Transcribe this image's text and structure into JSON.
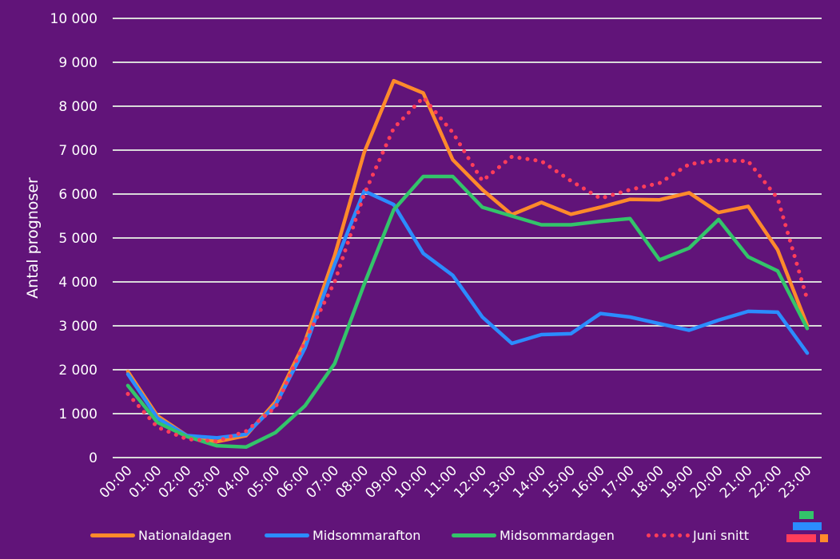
{
  "chart_data": {
    "type": "line",
    "title": "",
    "xlabel": "",
    "ylabel": "Antal prognoser",
    "ylim": [
      0,
      10000
    ],
    "y_ticks": [
      "0",
      "1 000",
      "2 000",
      "3 000",
      "4 000",
      "5 000",
      "6 000",
      "7 000",
      "8 000",
      "9 000",
      "10 000"
    ],
    "y_tick_values": [
      0,
      1000,
      2000,
      3000,
      4000,
      5000,
      6000,
      7000,
      8000,
      9000,
      10000
    ],
    "grid": true,
    "legend_position": "bottom",
    "categories": [
      "00:00",
      "01:00",
      "02:00",
      "03:00",
      "04:00",
      "05:00",
      "06:00",
      "07:00",
      "08:00",
      "09:00",
      "10:00",
      "11:00",
      "12:00",
      "13:00",
      "14:00",
      "15:00",
      "16:00",
      "17:00",
      "18:00",
      "19:00",
      "20:00",
      "21:00",
      "22:00",
      "23:00"
    ],
    "series": [
      {
        "name": "Nationaldagen",
        "color": "#FF8A2B",
        "style": "solid",
        "values": [
          1960,
          950,
          500,
          360,
          500,
          1270,
          2650,
          4600,
          6950,
          8580,
          8300,
          6780,
          6100,
          5530,
          5810,
          5540,
          5700,
          5880,
          5870,
          6030,
          5580,
          5720,
          4730,
          3010
        ]
      },
      {
        "name": "Midsommarafton",
        "color": "#2B8CFF",
        "style": "solid",
        "values": [
          1900,
          900,
          500,
          450,
          530,
          1200,
          2500,
          4400,
          6070,
          5760,
          4650,
          4150,
          3200,
          2600,
          2800,
          2820,
          3280,
          3200,
          3050,
          2900,
          3130,
          3330,
          3310,
          2380
        ]
      },
      {
        "name": "Midsommardagen",
        "color": "#33C46A",
        "style": "solid",
        "values": [
          1640,
          800,
          480,
          270,
          240,
          570,
          1180,
          2140,
          3950,
          5640,
          6400,
          6400,
          5700,
          5500,
          5300,
          5300,
          5380,
          5440,
          4500,
          4770,
          5420,
          4570,
          4250,
          2940
        ]
      },
      {
        "name": "Juni snitt",
        "color": "#FF3D5A",
        "style": "dotted",
        "values": [
          1450,
          690,
          420,
          370,
          600,
          1150,
          2650,
          4000,
          6000,
          7500,
          8200,
          7400,
          6300,
          6850,
          6750,
          6300,
          5900,
          6100,
          6250,
          6680,
          6770,
          6750,
          5900,
          3600
        ]
      }
    ]
  },
  "colors": {
    "background": "#611479",
    "gridline": "#D9D9D9",
    "text": "#FFFFFF"
  },
  "legend": [
    {
      "label": "Nationaldagen",
      "color": "#FF8A2B",
      "style": "solid"
    },
    {
      "label": "Midsommarafton",
      "color": "#2B8CFF",
      "style": "solid"
    },
    {
      "label": "Midsommardagen",
      "color": "#33C46A",
      "style": "solid"
    },
    {
      "label": "Juni snitt",
      "color": "#FF3D5A",
      "style": "dotted"
    }
  ],
  "logo": {
    "icon": "brand-logo-icon",
    "colors": [
      "#33C46A",
      "#2B8CFF",
      "#FF3D5A",
      "#FF8A2B"
    ]
  }
}
